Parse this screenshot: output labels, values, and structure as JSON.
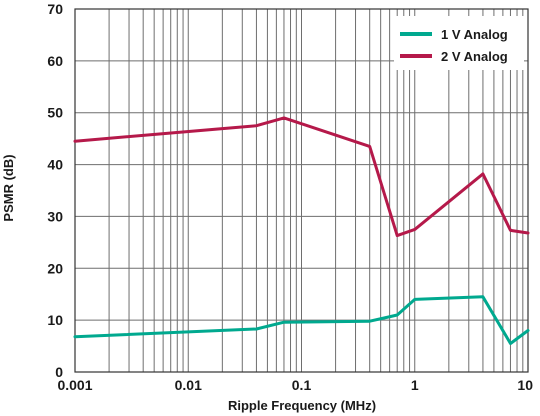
{
  "chart_data": {
    "type": "line",
    "title": "",
    "xlabel": "Ripple Frequency (MHz)",
    "ylabel": "PSMR (dB)",
    "xscale": "log",
    "xlim": [
      0.001,
      10
    ],
    "ylim": [
      0,
      70
    ],
    "x_ticks": [
      0.001,
      0.01,
      0.1,
      1,
      10
    ],
    "x_tick_labels": [
      "0.001",
      "0.01",
      "0.1",
      "1",
      "10"
    ],
    "y_ticks": [
      0,
      10,
      20,
      30,
      40,
      50,
      60,
      70
    ],
    "y_tick_labels": [
      "0",
      "10",
      "20",
      "30",
      "40",
      "50",
      "60",
      "70"
    ],
    "grid": true,
    "legend_position": "top-right",
    "series": [
      {
        "name": "1 V Analog",
        "color": "#00a98f",
        "x": [
          0.001,
          0.04,
          0.07,
          0.4,
          0.7,
          1,
          4,
          7,
          10
        ],
        "y": [
          6.8,
          8.3,
          9.6,
          9.8,
          11,
          14,
          14.5,
          5.5,
          8
        ]
      },
      {
        "name": "2 V Analog",
        "color": "#b5194a",
        "x": [
          0.001,
          0.04,
          0.07,
          0.4,
          0.7,
          1,
          4,
          7,
          10
        ],
        "y": [
          44.5,
          47.5,
          49,
          43.5,
          26.3,
          27.5,
          38.2,
          27.3,
          26.8
        ]
      }
    ]
  }
}
